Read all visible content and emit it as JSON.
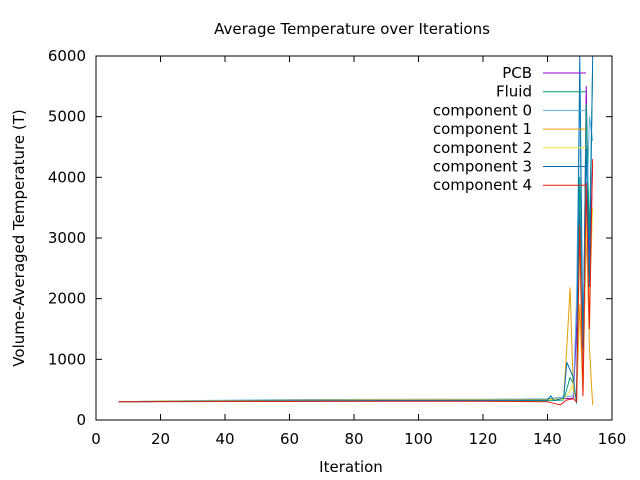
{
  "chart_data": {
    "type": "line",
    "title": "Average Temperature over Iterations",
    "xlabel": "Iteration",
    "ylabel": "Volume-Averaged Temperature (T)",
    "xlim": [
      0,
      160
    ],
    "ylim": [
      0,
      6000
    ],
    "xticks": [
      "0",
      "20",
      "40",
      "60",
      "80",
      "100",
      "120",
      "140",
      "160"
    ],
    "yticks": [
      "0",
      "1000",
      "2000",
      "3000",
      "4000",
      "5000",
      "6000"
    ],
    "grid": false,
    "legend_position": "top-right",
    "series": [
      {
        "name": "PCB",
        "color": "#9400d3",
        "x": [
          7,
          20,
          40,
          60,
          80,
          100,
          120,
          130,
          140,
          145,
          148,
          149,
          150,
          151,
          152,
          153,
          154
        ],
        "y": [
          300,
          305,
          310,
          315,
          318,
          320,
          320,
          322,
          330,
          350,
          360,
          1500,
          3500,
          600,
          5500,
          2500,
          4200
        ]
      },
      {
        "name": "Fluid",
        "color": "#009e73",
        "x": [
          7,
          20,
          40,
          60,
          80,
          100,
          120,
          130,
          140,
          145,
          147,
          148,
          149,
          150,
          151,
          152,
          153,
          154
        ],
        "y": [
          300,
          303,
          306,
          308,
          310,
          311,
          312,
          314,
          318,
          330,
          700,
          600,
          280,
          4000,
          900,
          5200,
          3000,
          5800
        ]
      },
      {
        "name": "component 0",
        "color": "#56b4e9",
        "x": [
          7,
          20,
          40,
          60,
          80,
          100,
          120,
          130,
          140,
          145,
          148,
          149,
          150,
          151,
          152,
          153,
          154
        ],
        "y": [
          300,
          315,
          325,
          335,
          340,
          342,
          343,
          345,
          350,
          380,
          400,
          2000,
          5600,
          800,
          3000,
          5000,
          4600
        ]
      },
      {
        "name": "component 1",
        "color": "#e69f00",
        "x": [
          7,
          20,
          40,
          60,
          80,
          100,
          120,
          130,
          140,
          145,
          146,
          147,
          148,
          149,
          150,
          151,
          152,
          153,
          154
        ],
        "y": [
          300,
          310,
          318,
          325,
          330,
          332,
          333,
          335,
          340,
          350,
          1200,
          2180,
          500,
          300,
          1900,
          400,
          3300,
          1200,
          250
        ]
      },
      {
        "name": "component 2",
        "color": "#f0e442",
        "x": [
          7,
          20,
          40,
          60,
          80,
          100,
          120,
          130,
          140,
          145,
          147,
          148,
          149,
          150,
          151,
          152,
          153,
          154
        ],
        "y": [
          300,
          308,
          315,
          320,
          324,
          326,
          327,
          328,
          333,
          340,
          480,
          600,
          300,
          2900,
          500,
          3300,
          1800,
          3500
        ]
      },
      {
        "name": "component 3",
        "color": "#0072b2",
        "x": [
          7,
          20,
          40,
          60,
          80,
          100,
          120,
          130,
          140,
          141,
          142,
          145,
          146,
          148,
          149,
          150,
          151,
          152,
          153,
          154
        ],
        "y": [
          300,
          305,
          312,
          318,
          320,
          322,
          323,
          325,
          330,
          400,
          320,
          360,
          950,
          700,
          280,
          6000,
          1200,
          4500,
          2200,
          6000
        ]
      },
      {
        "name": "component 4",
        "color": "#e51e10",
        "x": [
          7,
          20,
          40,
          60,
          80,
          100,
          120,
          130,
          140,
          144,
          146,
          148,
          149,
          150,
          151,
          152,
          153,
          154
        ],
        "y": [
          300,
          302,
          304,
          306,
          308,
          309,
          310,
          305,
          300,
          250,
          330,
          350,
          300,
          3200,
          400,
          3900,
          1500,
          4300
        ]
      }
    ]
  }
}
